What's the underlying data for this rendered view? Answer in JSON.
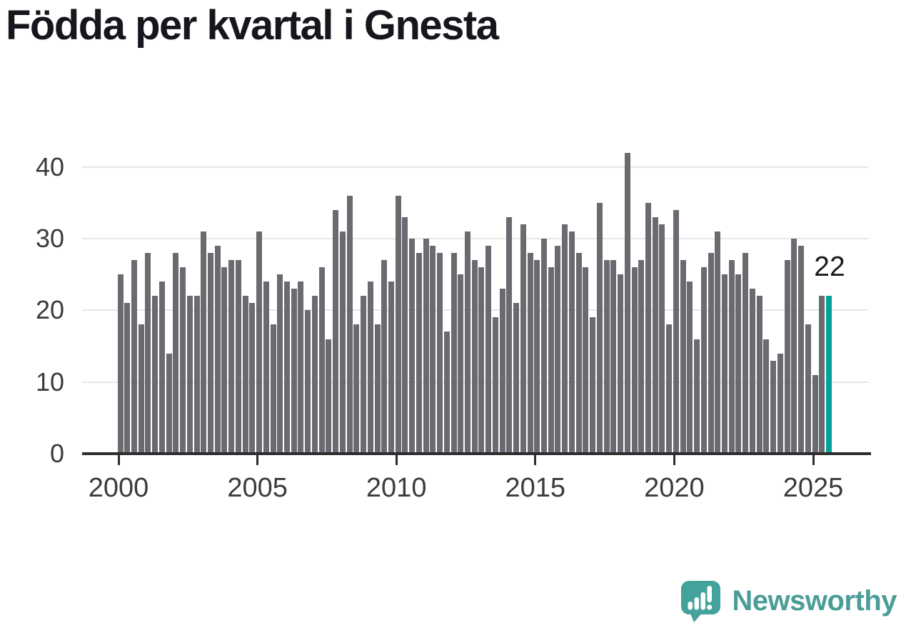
{
  "title": "Födda per kvartal i Gnesta",
  "chart_data": {
    "type": "bar",
    "title": "Födda per kvartal i Gnesta",
    "x_unit": "quarter",
    "x_start": "2000-Q1",
    "x_end": "2025-Q3",
    "values": [
      25,
      21,
      27,
      18,
      28,
      22,
      24,
      14,
      28,
      26,
      22,
      22,
      31,
      28,
      29,
      26,
      27,
      27,
      22,
      21,
      31,
      24,
      18,
      25,
      24,
      23,
      24,
      20,
      22,
      26,
      16,
      34,
      31,
      36,
      18,
      22,
      24,
      18,
      27,
      24,
      36,
      33,
      30,
      28,
      30,
      29,
      28,
      17,
      28,
      25,
      31,
      27,
      26,
      29,
      19,
      23,
      33,
      21,
      32,
      28,
      27,
      30,
      26,
      29,
      32,
      31,
      28,
      26,
      19,
      35,
      27,
      27,
      25,
      42,
      26,
      27,
      35,
      33,
      32,
      18,
      34,
      27,
      24,
      16,
      26,
      28,
      31,
      25,
      27,
      25,
      28,
      23,
      22,
      16,
      13,
      14,
      27,
      30,
      29,
      18,
      11,
      22,
      22
    ],
    "highlight_index": 102,
    "annotation": {
      "text": "22",
      "index": 102,
      "value": 22
    },
    "xticks": [
      {
        "label": "2000",
        "q": 0
      },
      {
        "label": "2005",
        "q": 20
      },
      {
        "label": "2010",
        "q": 40
      },
      {
        "label": "2015",
        "q": 60
      },
      {
        "label": "2020",
        "q": 80
      },
      {
        "label": "2025",
        "q": 100
      }
    ],
    "yticks": [
      0,
      10,
      20,
      30,
      40
    ],
    "ylim": [
      0,
      44
    ],
    "grid": "horizontal",
    "legend": "none",
    "colors": {
      "bar": "#6a6a70",
      "highlight": "#00a29a",
      "axis": "#2d2d2d",
      "gridline": "#e7e7e7",
      "tick_label": "#3b3b3b",
      "annotation": "#1a1a1a",
      "title": "#16161d"
    }
  },
  "branding": {
    "logo_text": "Newsworthy",
    "logo_color": "#4b9d97",
    "logo_icon_color": "#43a29b",
    "logo_icon": "speech-bubble-bar-chart-exclamation-icon"
  }
}
